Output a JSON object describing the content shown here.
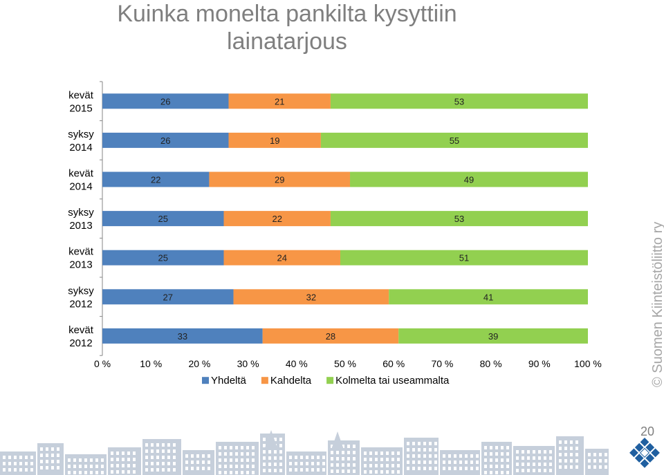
{
  "title": {
    "line1": "Kuinka monelta pankilta kysyttiin",
    "line2": "lainatarjous"
  },
  "chart_data": {
    "type": "bar",
    "orientation": "horizontal",
    "stacked": true,
    "percent_stacked": true,
    "categories": [
      [
        "kevät",
        "2015"
      ],
      [
        "syksy",
        "2014"
      ],
      [
        "kevät",
        "2014"
      ],
      [
        "syksy",
        "2013"
      ],
      [
        "kevät",
        "2013"
      ],
      [
        "syksy",
        "2012"
      ],
      [
        "kevät",
        "2012"
      ]
    ],
    "series": [
      {
        "name": "Yhdeltä",
        "color": "#4f81bd",
        "values": [
          26,
          26,
          22,
          25,
          25,
          27,
          33
        ]
      },
      {
        "name": "Kahdelta",
        "color": "#f79646",
        "values": [
          21,
          19,
          29,
          22,
          24,
          32,
          28
        ]
      },
      {
        "name": "Kolmelta tai useammalta",
        "color": "#92d050",
        "values": [
          53,
          55,
          49,
          53,
          51,
          41,
          39
        ]
      }
    ],
    "x_ticks": [
      "0 %",
      "10 %",
      "20 %",
      "30 %",
      "40 %",
      "50 %",
      "60 %",
      "70 %",
      "80 %",
      "90 %",
      "100 %"
    ],
    "xlim": [
      0,
      100
    ],
    "legend_position": "bottom",
    "grid": false,
    "data_labels": true
  },
  "copyright": "© Suomen Kiinteistöliitto ry",
  "page_number": "20",
  "decor": {
    "footer": "city-skyline-illustration",
    "logo": "diamond-grid-logo"
  }
}
